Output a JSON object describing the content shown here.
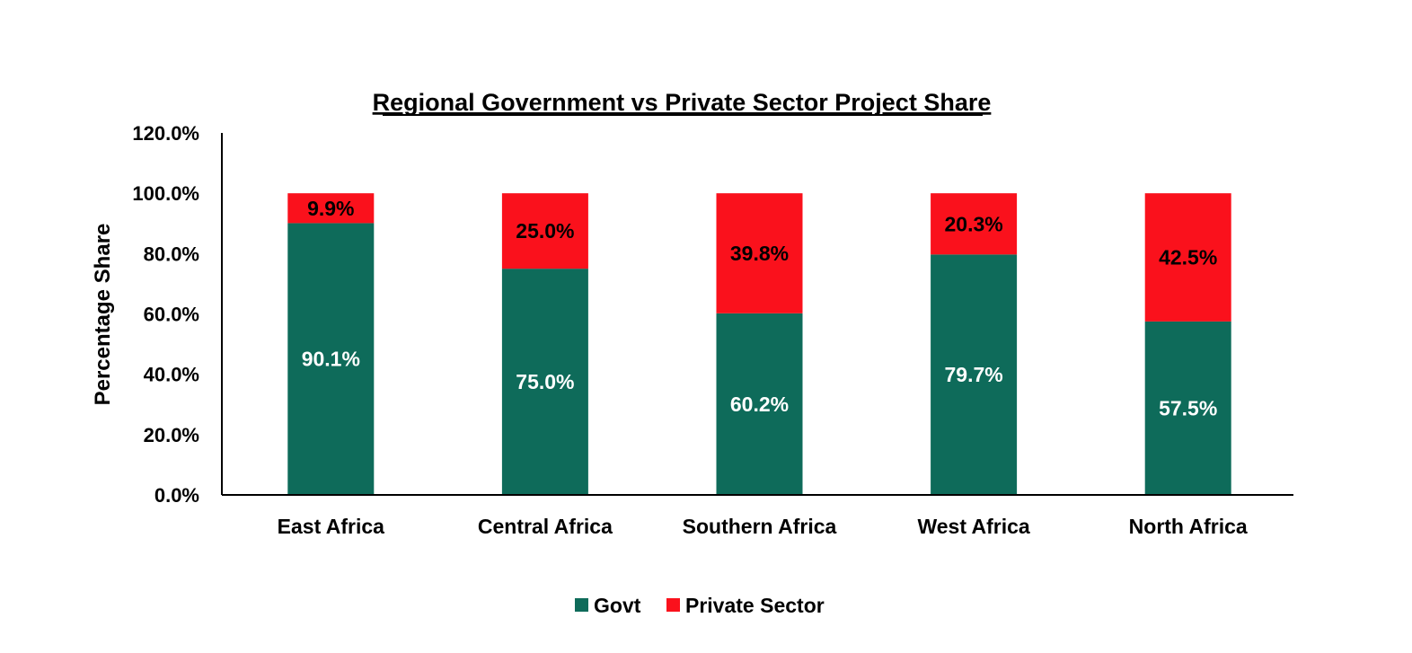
{
  "chart_data": {
    "type": "bar",
    "stacked": true,
    "title": "Regional Government vs Private Sector Project Share",
    "xlabel": "",
    "ylabel": "Percentage Share",
    "ylim": [
      0,
      120
    ],
    "yticks": [
      "0.0%",
      "20.0%",
      "40.0%",
      "60.0%",
      "80.0%",
      "100.0%",
      "120.0%"
    ],
    "ytick_values": [
      0,
      20,
      40,
      60,
      80,
      100,
      120
    ],
    "categories": [
      "East Africa",
      "Central Africa",
      "Southern Africa",
      "West Africa",
      "North Africa"
    ],
    "series": [
      {
        "name": "Govt",
        "color": "#0e6b5a",
        "label_color": "#ffffff",
        "values": [
          90.1,
          75.0,
          60.2,
          79.7,
          57.5
        ],
        "labels": [
          "90.1%",
          "75.0%",
          "60.2%",
          "79.7%",
          "57.5%"
        ]
      },
      {
        "name": "Private Sector",
        "color": "#fa111c",
        "label_color": "#000000",
        "values": [
          9.9,
          25.0,
          39.8,
          20.3,
          42.5
        ],
        "labels": [
          "9.9%",
          "25.0%",
          "39.8%",
          "20.3%",
          "42.5%"
        ]
      }
    ],
    "grid": false,
    "legend": "bottom-center"
  }
}
